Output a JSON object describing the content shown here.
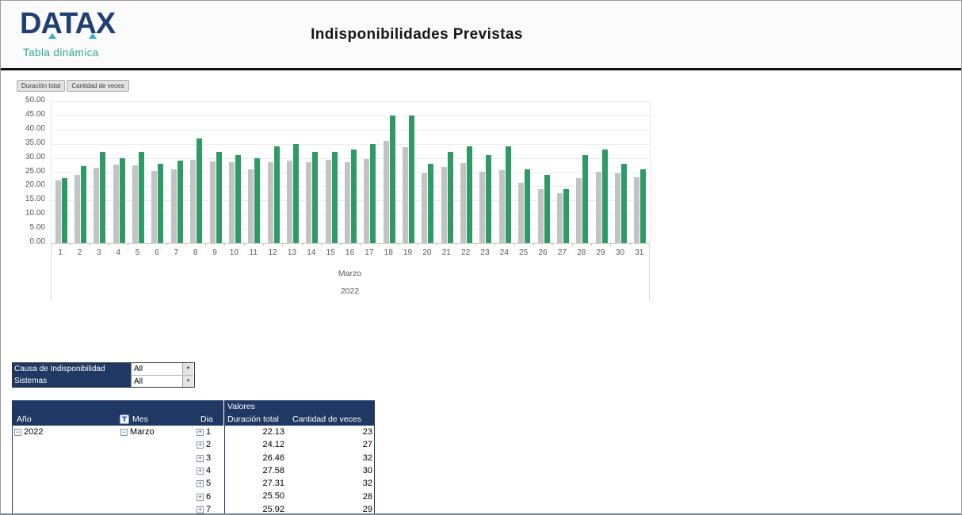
{
  "header": {
    "logo_text": "DATAX",
    "logo_subtitle": "Tabla dinámica",
    "title": "Indisponibilidades Previstas"
  },
  "colors": {
    "navy": "#1f3864",
    "logo_navy": "#223f72",
    "teal_accent": "#2fb0c7",
    "teal_text": "#2ea98c",
    "bar_gray": "#c3c3c3",
    "bar_green": "#2e9a66",
    "axis_text": "#595959"
  },
  "chart": {
    "field_buttons": [
      "Duración total",
      "Cantidad de veces"
    ]
  },
  "chart_data": {
    "type": "bar",
    "title": "",
    "categories": [
      "1",
      "2",
      "3",
      "4",
      "5",
      "6",
      "7",
      "8",
      "9",
      "10",
      "11",
      "12",
      "13",
      "14",
      "15",
      "16",
      "17",
      "18",
      "19",
      "20",
      "21",
      "22",
      "23",
      "24",
      "25",
      "26",
      "27",
      "28",
      "29",
      "30",
      "31"
    ],
    "series": [
      {
        "name": "Duración total",
        "color": "#c3c3c3",
        "values": [
          22.13,
          24.12,
          26.46,
          27.58,
          27.31,
          25.5,
          25.92,
          29.45,
          28.8,
          28.4,
          25.85,
          28.5,
          29.1,
          28.4,
          29.3,
          28.45,
          29.55,
          35.95,
          33.7,
          24.7,
          26.8,
          28.3,
          25.15,
          25.6,
          21.2,
          19.1,
          17.7,
          22.8,
          25.1,
          24.5,
          23.1
        ]
      },
      {
        "name": "Cantidad de veces",
        "color": "#2e9a66",
        "values": [
          23,
          27,
          32,
          30,
          32,
          28,
          29,
          37,
          32,
          31,
          30,
          34,
          35,
          32,
          32,
          33,
          35,
          45,
          45,
          28,
          32,
          34,
          31,
          34,
          26,
          24,
          19,
          31,
          33,
          28,
          26
        ]
      }
    ],
    "xlabel": "",
    "ylabel": "",
    "x_group_labels": [
      "Marzo",
      "2022"
    ],
    "ylim": [
      0,
      50
    ],
    "ytick_values": [
      50,
      45,
      40,
      35,
      30,
      25,
      20,
      15,
      10,
      5,
      0
    ],
    "ytick_labels": [
      "50.00",
      "45.00",
      "40.00",
      "35.00",
      "30.00",
      "25.00",
      "20.00",
      "15.00",
      "10.00",
      "5.00",
      "0.00"
    ],
    "grid": true,
    "legend_position": "field-buttons-top-left"
  },
  "filters": [
    {
      "label": "Causa de Indisponibilidad",
      "value": "All"
    },
    {
      "label": "Sistemas",
      "value": "All"
    }
  ],
  "pivot_table": {
    "values_header": "Valores",
    "columns": [
      "Año",
      "Mes",
      "Dia",
      "Duración total",
      "Cantidad de veces"
    ],
    "rows": [
      {
        "ano": "2022",
        "mes": "Marzo",
        "dia": "1",
        "duracion": "22.13",
        "cantidad": "23"
      },
      {
        "ano": "",
        "mes": "",
        "dia": "2",
        "duracion": "24.12",
        "cantidad": "27"
      },
      {
        "ano": "",
        "mes": "",
        "dia": "3",
        "duracion": "26.46",
        "cantidad": "32"
      },
      {
        "ano": "",
        "mes": "",
        "dia": "4",
        "duracion": "27.58",
        "cantidad": "30"
      },
      {
        "ano": "",
        "mes": "",
        "dia": "5",
        "duracion": "27.31",
        "cantidad": "32"
      },
      {
        "ano": "",
        "mes": "",
        "dia": "6",
        "duracion": "25.50",
        "cantidad": "28"
      },
      {
        "ano": "",
        "mes": "",
        "dia": "7",
        "duracion": "25.92",
        "cantidad": "29"
      }
    ]
  }
}
